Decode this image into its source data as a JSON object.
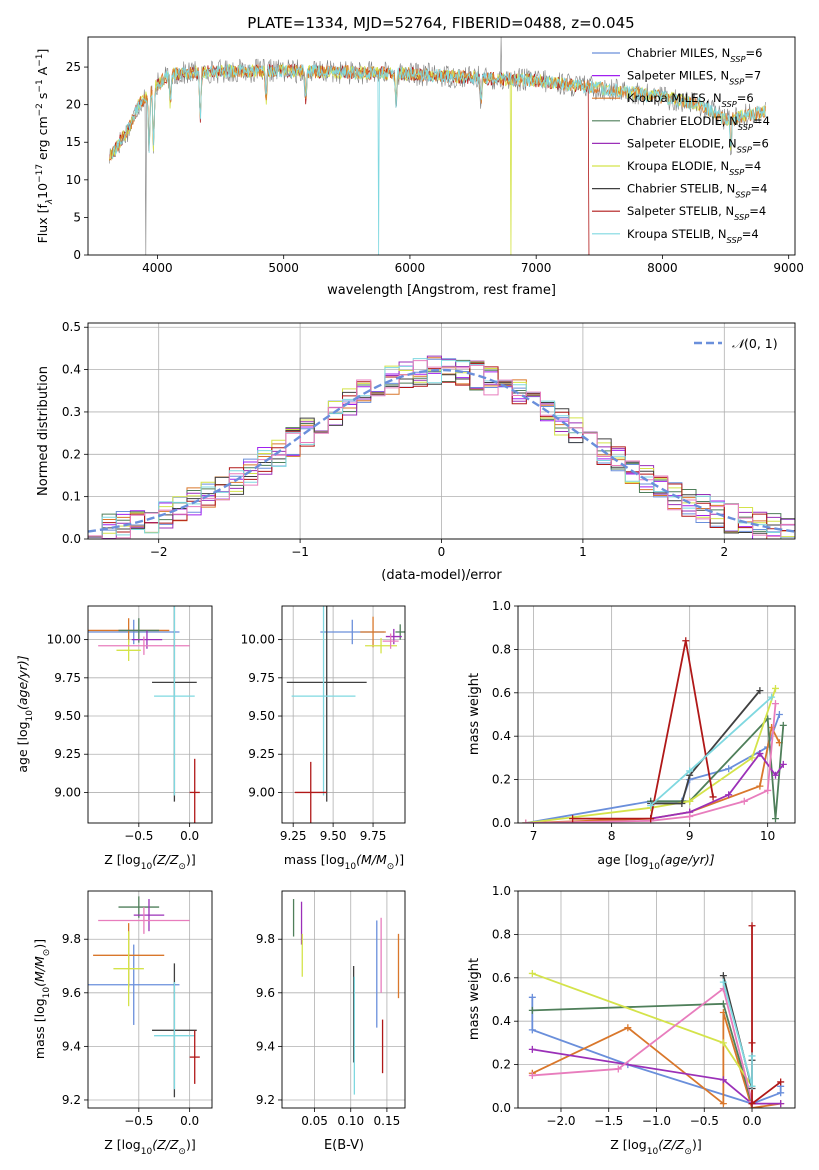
{
  "figure_title": "PLATE=1334, MJD=52764, FIBERID=0488, z=0.045",
  "model_legend": [
    {
      "main": "Chabrier MILES, N",
      "sub": "SSP",
      "tail": "=6",
      "color": "#6a8fdb"
    },
    {
      "main": "Salpeter MILES, N",
      "sub": "SSP",
      "tail": "=7",
      "color": "#a020f0"
    },
    {
      "main": "Kroupa MILES, N",
      "sub": "SSP",
      "tail": "=6",
      "color": "#d9772b"
    },
    {
      "main": "Chabrier ELODIE, N",
      "sub": "SSP",
      "tail": "=4",
      "color": "#4f7f5a"
    },
    {
      "main": "Salpeter ELODIE, N",
      "sub": "SSP",
      "tail": "=6",
      "color": "#9b30b8"
    },
    {
      "main": "Kroupa ELODIE, N",
      "sub": "SSP",
      "tail": "=4",
      "color": "#d4e34a"
    },
    {
      "main": "Chabrier STELIB, N",
      "sub": "SSP",
      "tail": "=4",
      "color": "#404040"
    },
    {
      "main": "Salpeter STELIB, N",
      "sub": "SSP",
      "tail": "=4",
      "color": "#b01818"
    },
    {
      "main": "Kroupa STELIB, N",
      "sub": "SSP",
      "tail": "=4",
      "color": "#7fd8e0"
    }
  ],
  "colors": {
    "spectrum_gray": "#808080",
    "normal_curve": "#6a8fdb",
    "pink": "#e87dbd",
    "grid": "#b0b0b0"
  },
  "chart_data": [
    {
      "id": "spectrum",
      "type": "line",
      "xlabel": "wavelength [Angstrom, rest frame]",
      "ylabel_main": "Flux [f",
      "ylabel_tail": "10",
      "ylabel_rest": " erg cm",
      "ylabel_units": " s",
      "ylabel_end": " A",
      "xlim": [
        3450,
        9050
      ],
      "ylim": [
        0,
        29
      ],
      "xticks": [
        "4000",
        "5000",
        "6000",
        "7000",
        "8000",
        "9000"
      ],
      "yticks": [
        "0",
        "5",
        "10",
        "15",
        "20",
        "25"
      ],
      "grid": false,
      "legend_position": "top-right",
      "continuum_anchors": [
        [
          3620,
          13
        ],
        [
          3700,
          15
        ],
        [
          3780,
          17
        ],
        [
          3850,
          20
        ],
        [
          3950,
          22
        ],
        [
          4100,
          24
        ],
        [
          4300,
          24.3
        ],
        [
          4600,
          24.5
        ],
        [
          5000,
          24.5
        ],
        [
          5500,
          24.3
        ],
        [
          6000,
          24.1
        ],
        [
          6500,
          23.6
        ],
        [
          7000,
          23.2
        ],
        [
          7500,
          22.2
        ],
        [
          8000,
          21
        ],
        [
          8300,
          20
        ],
        [
          8500,
          18
        ],
        [
          8800,
          19
        ]
      ],
      "absorption_features": [
        [
          3934,
          8
        ],
        [
          3969,
          8
        ],
        [
          4102,
          4
        ],
        [
          4340,
          6
        ],
        [
          4861,
          4
        ],
        [
          5175,
          4
        ],
        [
          5890,
          4
        ],
        [
          6563,
          3
        ],
        [
          8542,
          4
        ]
      ],
      "spikes": [
        [
          3910,
          0
        ],
        [
          5750,
          0
        ],
        [
          6800,
          0
        ],
        [
          7420,
          0
        ],
        [
          6720,
          29
        ]
      ]
    },
    {
      "id": "residuals",
      "type": "histogram",
      "xlabel": "(data-model)/error",
      "ylabel": "Normed distribution",
      "xlim": [
        -2.5,
        2.5
      ],
      "ylim": [
        0,
        0.51
      ],
      "xticks": [
        "−2",
        "−1",
        "0",
        "1",
        "2"
      ],
      "yticks": [
        "0.0",
        "0.1",
        "0.2",
        "0.3",
        "0.4",
        "0.5"
      ],
      "grid": true,
      "legend": "(0, 1)",
      "legend_symbol": "𝒩",
      "legend_position": "top-right",
      "bin_width": 0.1,
      "normal": {
        "mean": 0,
        "sigma": 1
      }
    },
    {
      "id": "age-vs-Z",
      "type": "scatter",
      "xlabel_main": "Z [log",
      "xlabel_sub": "10",
      "xlabel_rest": "(Z/Z",
      "xlabel_end": ")]",
      "ylabel_main": "age  [log",
      "ylabel_sub": "10",
      "ylabel_rest": "(age/yr)]",
      "xlim": [
        -1.0,
        0.22
      ],
      "ylim": [
        8.8,
        10.22
      ],
      "xticks": [
        {
          "v": -0.5,
          "t": "−0.5"
        },
        {
          "v": 0.0,
          "t": "0.0"
        }
      ],
      "yticks": [
        {
          "v": 9.0,
          "t": "9.00"
        },
        {
          "v": 9.25,
          "t": "9.25"
        },
        {
          "v": 9.5,
          "t": "9.50"
        },
        {
          "v": 9.75,
          "t": "9.75"
        },
        {
          "v": 10.0,
          "t": "10.00"
        }
      ],
      "points": [
        {
          "x": -0.55,
          "y": 10.05,
          "xerr": 0.45,
          "yerr": 0.08,
          "color": "#6a8fdb"
        },
        {
          "x": -0.6,
          "y": 10.06,
          "xerr": 0.4,
          "yerr": 0.08,
          "color": "#d9772b"
        },
        {
          "x": -0.5,
          "y": 10.06,
          "xerr": 0.2,
          "yerr": 0.08,
          "color": "#4f7f5a"
        },
        {
          "x": -0.42,
          "y": 10.0,
          "xerr": 0.15,
          "yerr": 0.06,
          "color": "#9b30b8"
        },
        {
          "x": -0.6,
          "y": 9.93,
          "xerr": 0.12,
          "yerr": 0.07,
          "color": "#d4e34a"
        },
        {
          "x": -0.45,
          "y": 9.96,
          "xerr": 0.45,
          "yerr": 0.06,
          "color": "#e87dbd"
        },
        {
          "x": -0.15,
          "y": 9.72,
          "xerr": 0.22,
          "yerr": 0.78,
          "color": "#404040"
        },
        {
          "x": -0.15,
          "y": 9.63,
          "xerr": 0.2,
          "yerr": 0.65,
          "color": "#7fd8e0"
        },
        {
          "x": 0.05,
          "y": 9.0,
          "xerr": 0.05,
          "yerr": 0.22,
          "color": "#b01818"
        }
      ]
    },
    {
      "id": "age-vs-mass",
      "type": "scatter",
      "xlabel_main": "mass [log",
      "xlabel_sub": "10",
      "xlabel_rest": "(M/M",
      "xlabel_end": ")]",
      "xlim": [
        9.18,
        9.95
      ],
      "ylim": [
        8.8,
        10.22
      ],
      "xticks": [
        {
          "v": 9.25,
          "t": "9.25"
        },
        {
          "v": 9.5,
          "t": "9.50"
        },
        {
          "v": 9.75,
          "t": "9.75"
        }
      ],
      "yticks": [
        {
          "v": 9.0,
          "t": "9.00"
        },
        {
          "v": 9.25,
          "t": "9.25"
        },
        {
          "v": 9.5,
          "t": "9.50"
        },
        {
          "v": 9.75,
          "t": "9.75"
        },
        {
          "v": 10.0,
          "t": "10.00"
        }
      ],
      "points": [
        {
          "x": 9.62,
          "y": 10.05,
          "xerr": 0.2,
          "yerr": 0.08,
          "color": "#6a8fdb"
        },
        {
          "x": 9.75,
          "y": 10.05,
          "xerr": 0.08,
          "yerr": 0.1,
          "color": "#d9772b"
        },
        {
          "x": 9.92,
          "y": 10.05,
          "xerr": 0.03,
          "yerr": 0.05,
          "color": "#4f7f5a"
        },
        {
          "x": 9.88,
          "y": 10.02,
          "xerr": 0.05,
          "yerr": 0.05,
          "color": "#9b30b8"
        },
        {
          "x": 9.8,
          "y": 9.96,
          "xerr": 0.1,
          "yerr": 0.05,
          "color": "#d4e34a"
        },
        {
          "x": 9.86,
          "y": 9.99,
          "xerr": 0.05,
          "yerr": 0.05,
          "color": "#e87dbd"
        },
        {
          "x": 9.46,
          "y": 9.72,
          "xerr": 0.25,
          "yerr": 0.78,
          "color": "#404040"
        },
        {
          "x": 9.44,
          "y": 9.63,
          "xerr": 0.2,
          "yerr": 0.65,
          "color": "#7fd8e0"
        },
        {
          "x": 9.36,
          "y": 9.0,
          "xerr": 0.1,
          "yerr": 0.2,
          "color": "#b01818"
        }
      ]
    },
    {
      "id": "weight-vs-age",
      "type": "line",
      "xlabel_main": "age  [log",
      "xlabel_sub": "10",
      "xlabel_rest": "(age/yr)]",
      "ylabel": "mass weight",
      "xlim": [
        6.8,
        10.35
      ],
      "ylim": [
        0,
        1.0
      ],
      "xticks": [
        {
          "v": 7,
          "t": "7"
        },
        {
          "v": 8,
          "t": "8"
        },
        {
          "v": 9,
          "t": "9"
        },
        {
          "v": 10,
          "t": "10"
        }
      ],
      "yticks": [
        {
          "v": 0,
          "t": "0.0"
        },
        {
          "v": 0.2,
          "t": "0.2"
        },
        {
          "v": 0.4,
          "t": "0.4"
        },
        {
          "v": 0.6,
          "t": "0.6"
        },
        {
          "v": 0.8,
          "t": "0.8"
        },
        {
          "v": 1.0,
          "t": "1.0"
        }
      ],
      "series": [
        {
          "color": "#6a8fdb",
          "x": [
            6.9,
            8.5,
            8.9,
            9.0,
            9.5,
            10.0,
            10.15
          ],
          "y": [
            0.0,
            0.1,
            0.1,
            0.2,
            0.25,
            0.35,
            0.5
          ]
        },
        {
          "color": "#d9772b",
          "x": [
            6.9,
            8.5,
            9.0,
            9.9,
            10.05,
            10.15
          ],
          "y": [
            0.0,
            0.02,
            0.05,
            0.17,
            0.44,
            0.37
          ]
        },
        {
          "color": "#4f7f5a",
          "x": [
            8.5,
            9.0,
            10.0,
            10.1,
            10.2
          ],
          "y": [
            0.1,
            0.1,
            0.48,
            0.02,
            0.45
          ]
        },
        {
          "color": "#9b30b8",
          "x": [
            8.5,
            9.0,
            9.5,
            9.9,
            10.1,
            10.2
          ],
          "y": [
            0.02,
            0.05,
            0.13,
            0.32,
            0.22,
            0.27
          ]
        },
        {
          "color": "#d4e34a",
          "x": [
            6.9,
            8.5,
            9.0,
            9.8,
            10.1
          ],
          "y": [
            0.0,
            0.07,
            0.1,
            0.3,
            0.62
          ]
        },
        {
          "color": "#e87dbd",
          "x": [
            6.9,
            8.5,
            9.0,
            9.7,
            10.0,
            10.1
          ],
          "y": [
            0.0,
            0.01,
            0.03,
            0.1,
            0.15,
            0.55
          ]
        },
        {
          "color": "#404040",
          "x": [
            8.5,
            8.9,
            9.0,
            9.9
          ],
          "y": [
            0.09,
            0.09,
            0.22,
            0.61
          ]
        },
        {
          "color": "#b01818",
          "x": [
            7.5,
            8.5,
            8.95,
            9.3
          ],
          "y": [
            0.02,
            0.02,
            0.84,
            0.12
          ]
        },
        {
          "color": "#7fd8e0",
          "x": [
            8.5,
            9.0,
            10.05
          ],
          "y": [
            0.08,
            0.24,
            0.58
          ]
        }
      ]
    },
    {
      "id": "mass-vs-Z",
      "type": "scatter",
      "xlabel_main": "Z [log",
      "xlabel_sub": "10",
      "xlabel_rest": "(Z/Z",
      "xlabel_end": ")]",
      "ylabel_main": "mass [log",
      "ylabel_sub": "10",
      "ylabel_rest": "(M/M",
      "ylabel_end": ")]",
      "xlim": [
        -1.0,
        0.22
      ],
      "ylim": [
        9.17,
        9.98
      ],
      "xticks": [
        {
          "v": -0.5,
          "t": "−0.5"
        },
        {
          "v": 0.0,
          "t": "0.0"
        }
      ],
      "yticks": [
        {
          "v": 9.2,
          "t": "9.2"
        },
        {
          "v": 9.4,
          "t": "9.4"
        },
        {
          "v": 9.6,
          "t": "9.6"
        },
        {
          "v": 9.8,
          "t": "9.8"
        }
      ],
      "points": [
        {
          "x": -0.55,
          "y": 9.63,
          "xerr": 0.45,
          "yerr": 0.15,
          "color": "#6a8fdb"
        },
        {
          "x": -0.6,
          "y": 9.74,
          "xerr": 0.35,
          "yerr": 0.12,
          "color": "#d9772b"
        },
        {
          "x": -0.5,
          "y": 9.92,
          "xerr": 0.2,
          "yerr": 0.04,
          "color": "#4f7f5a"
        },
        {
          "x": -0.4,
          "y": 9.89,
          "xerr": 0.15,
          "yerr": 0.06,
          "color": "#9b30b8"
        },
        {
          "x": -0.6,
          "y": 9.69,
          "xerr": 0.15,
          "yerr": 0.14,
          "color": "#d4e34a"
        },
        {
          "x": -0.45,
          "y": 9.87,
          "xerr": 0.45,
          "yerr": 0.05,
          "color": "#e87dbd"
        },
        {
          "x": -0.15,
          "y": 9.46,
          "xerr": 0.22,
          "yerr": 0.25,
          "color": "#404040"
        },
        {
          "x": -0.15,
          "y": 9.44,
          "xerr": 0.2,
          "yerr": 0.2,
          "color": "#7fd8e0"
        },
        {
          "x": 0.05,
          "y": 9.36,
          "xerr": 0.05,
          "yerr": 0.1,
          "color": "#b01818"
        }
      ]
    },
    {
      "id": "mass-vs-EBV",
      "type": "scatter",
      "xlabel": "E(B-V)",
      "xlim": [
        0.005,
        0.175
      ],
      "ylim": [
        9.17,
        9.98
      ],
      "xticks": [
        {
          "v": 0.05,
          "t": "0.05"
        },
        {
          "v": 0.1,
          "t": "0.10"
        },
        {
          "v": 0.15,
          "t": "0.15"
        }
      ],
      "yticks": [
        {
          "v": 9.2,
          "t": "9.2"
        },
        {
          "v": 9.4,
          "t": "9.4"
        },
        {
          "v": 9.6,
          "t": "9.6"
        },
        {
          "v": 9.8,
          "t": "9.8"
        }
      ],
      "points": [
        {
          "x": 0.021,
          "y": 9.88,
          "xerr": 0,
          "yerr": 0.07,
          "color": "#4f7f5a"
        },
        {
          "x": 0.032,
          "y": 9.86,
          "xerr": 0,
          "yerr": 0.08,
          "color": "#9b30b8"
        },
        {
          "x": 0.033,
          "y": 9.74,
          "xerr": 0,
          "yerr": 0.08,
          "color": "#d4e34a"
        },
        {
          "x": 0.104,
          "y": 9.52,
          "xerr": 0,
          "yerr": 0.18,
          "color": "#404040"
        },
        {
          "x": 0.105,
          "y": 9.44,
          "xerr": 0,
          "yerr": 0.22,
          "color": "#7fd8e0"
        },
        {
          "x": 0.136,
          "y": 9.67,
          "xerr": 0,
          "yerr": 0.2,
          "color": "#6a8fdb"
        },
        {
          "x": 0.142,
          "y": 9.74,
          "xerr": 0,
          "yerr": 0.14,
          "color": "#e87dbd"
        },
        {
          "x": 0.144,
          "y": 9.4,
          "xerr": 0,
          "yerr": 0.1,
          "color": "#b01818"
        },
        {
          "x": 0.166,
          "y": 9.7,
          "xerr": 0,
          "yerr": 0.12,
          "color": "#d9772b"
        }
      ]
    },
    {
      "id": "weight-vs-Z",
      "type": "line",
      "xlabel_main": "Z [log",
      "xlabel_sub": "10",
      "xlabel_rest": "(Z/Z",
      "xlabel_end": ")]",
      "ylabel": "mass weight",
      "xlim": [
        -2.45,
        0.45
      ],
      "ylim": [
        0,
        1.0
      ],
      "xticks": [
        {
          "v": -2.0,
          "t": "−2.0"
        },
        {
          "v": -1.5,
          "t": "−1.5"
        },
        {
          "v": -1.0,
          "t": "−1.0"
        },
        {
          "v": -0.5,
          "t": "−0.5"
        },
        {
          "v": 0.0,
          "t": "0.0"
        }
      ],
      "yticks": [
        {
          "v": 0,
          "t": "0.0"
        },
        {
          "v": 0.2,
          "t": "0.2"
        },
        {
          "v": 0.4,
          "t": "0.4"
        },
        {
          "v": 0.6,
          "t": "0.6"
        },
        {
          "v": 0.8,
          "t": "0.8"
        },
        {
          "v": 1.0,
          "t": "1.0"
        }
      ],
      "series": [
        {
          "color": "#6a8fdb",
          "x": [
            -2.3,
            -2.3,
            -1.3,
            0.0,
            0.3,
            0.3
          ],
          "y": [
            0.51,
            0.36,
            0.2,
            0.02,
            0.07,
            0.1
          ]
        },
        {
          "color": "#d9772b",
          "x": [
            -2.3,
            -1.3,
            -0.3,
            -0.3,
            0.0,
            0.3
          ],
          "y": [
            0.16,
            0.37,
            0.02,
            0.44,
            0.0,
            0.02
          ]
        },
        {
          "color": "#4f7f5a",
          "x": [
            -2.3,
            -0.3,
            0.0
          ],
          "y": [
            0.45,
            0.48,
            0.02
          ]
        },
        {
          "color": "#9b30b8",
          "x": [
            -2.3,
            -0.3,
            0.0,
            0.3
          ],
          "y": [
            0.27,
            0.13,
            0.02,
            0.02
          ]
        },
        {
          "color": "#d4e34a",
          "x": [
            -2.3,
            -0.3,
            0.0
          ],
          "y": [
            0.62,
            0.3,
            0.1
          ]
        },
        {
          "color": "#e87dbd",
          "x": [
            -2.3,
            -1.4,
            -0.3,
            0.0
          ],
          "y": [
            0.15,
            0.18,
            0.55,
            0.03
          ]
        },
        {
          "color": "#404040",
          "x": [
            -0.3,
            0.0,
            0.0
          ],
          "y": [
            0.61,
            0.09,
            0.22
          ]
        },
        {
          "color": "#b01818",
          "x": [
            0.0,
            0.0,
            0.0,
            0.3
          ],
          "y": [
            0.84,
            0.3,
            0.02,
            0.12
          ]
        },
        {
          "color": "#7fd8e0",
          "x": [
            -0.3,
            0.0,
            0.0
          ],
          "y": [
            0.58,
            0.1,
            0.24
          ]
        }
      ]
    }
  ]
}
